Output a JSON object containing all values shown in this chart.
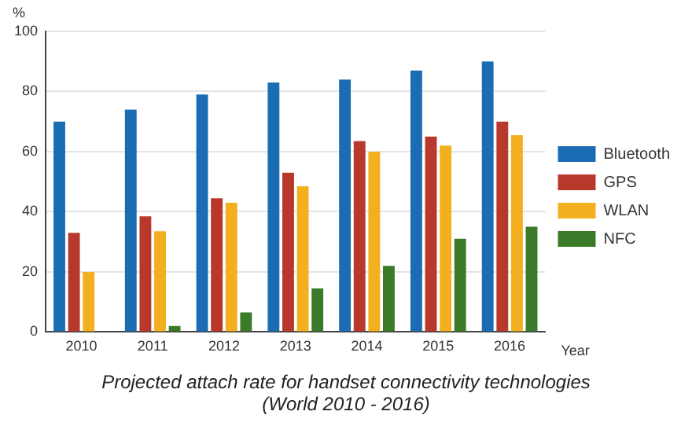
{
  "chart_data": {
    "type": "bar",
    "title": "Projected attach rate for handset connectivity technologies",
    "subtitle": "(World 2010 - 2016)",
    "xlabel": "Year",
    "ylabel": "%",
    "categories": [
      "2010",
      "2011",
      "2012",
      "2013",
      "2014",
      "2015",
      "2016"
    ],
    "series": [
      {
        "name": "Bluetooth",
        "color": "#1a6db3",
        "values": [
          70,
          74,
          79,
          83,
          84,
          87,
          90
        ]
      },
      {
        "name": "GPS",
        "color": "#b8392c",
        "values": [
          33,
          38.5,
          44.5,
          53,
          63.5,
          65,
          70
        ]
      },
      {
        "name": "WLAN",
        "color": "#f2b01e",
        "values": [
          20,
          33.5,
          43,
          48.5,
          60,
          62,
          65.5
        ]
      },
      {
        "name": "NFC",
        "color": "#3b7a28",
        "values": [
          0,
          2,
          6.5,
          14.5,
          22,
          31,
          35
        ]
      }
    ],
    "ylim": [
      0,
      100
    ],
    "yticks": [
      0,
      20,
      40,
      60,
      80,
      100
    ],
    "grid": "y",
    "legend": "right"
  }
}
